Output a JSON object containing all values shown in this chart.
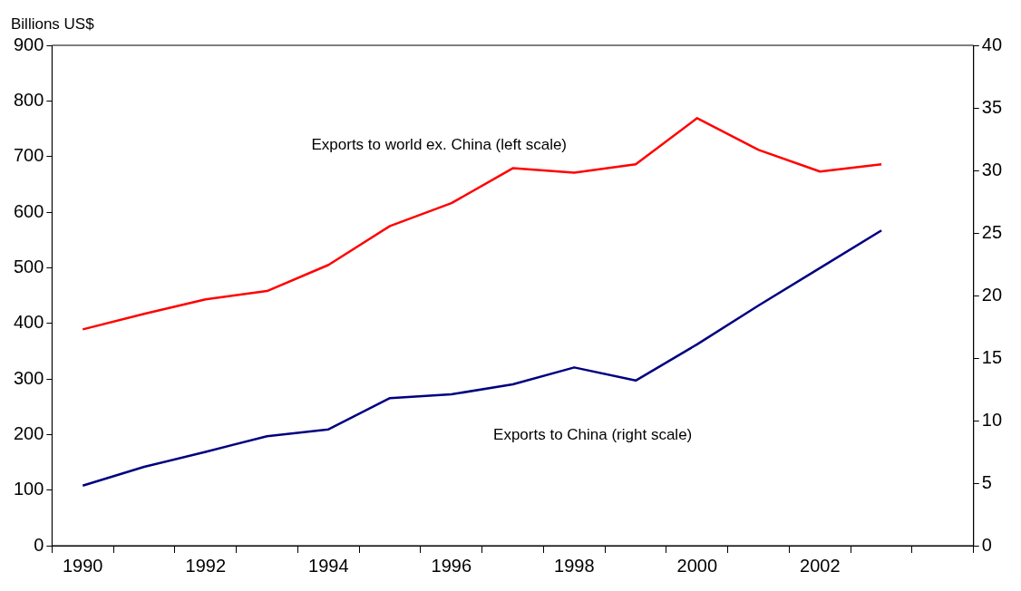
{
  "chart_data": {
    "type": "line",
    "ylabel": "Billions US$",
    "categories": [
      "1990",
      null,
      "1992",
      null,
      "1994",
      null,
      "1996",
      null,
      "1998",
      null,
      "2000",
      null,
      "2002",
      null,
      null
    ],
    "series": [
      {
        "name": "Exports to world ex. China (left scale)",
        "color": "#ff0000",
        "values": [
          389,
          417,
          443,
          458,
          505,
          575,
          616,
          679,
          671,
          686,
          769,
          712,
          673,
          686,
          null
        ]
      },
      {
        "name": "Exports to China (right scale)",
        "color": "#000080",
        "axis": "y2",
        "values": [
          4.8,
          6.3,
          7.5,
          8.75,
          9.3,
          11.8,
          12.1,
          12.9,
          14.25,
          13.2,
          16.1,
          19.2,
          22.2,
          25.2,
          null
        ]
      }
    ],
    "ylim": [
      0,
      900
    ],
    "yticks": [
      0,
      100,
      200,
      300,
      400,
      500,
      600,
      700,
      800,
      900
    ],
    "y2lim": [
      0,
      40
    ],
    "y2ticks": [
      0,
      5,
      10,
      15,
      20,
      25,
      30,
      35,
      40
    ],
    "grid": false,
    "legend": false,
    "marker": "none",
    "line_style": "solid"
  }
}
